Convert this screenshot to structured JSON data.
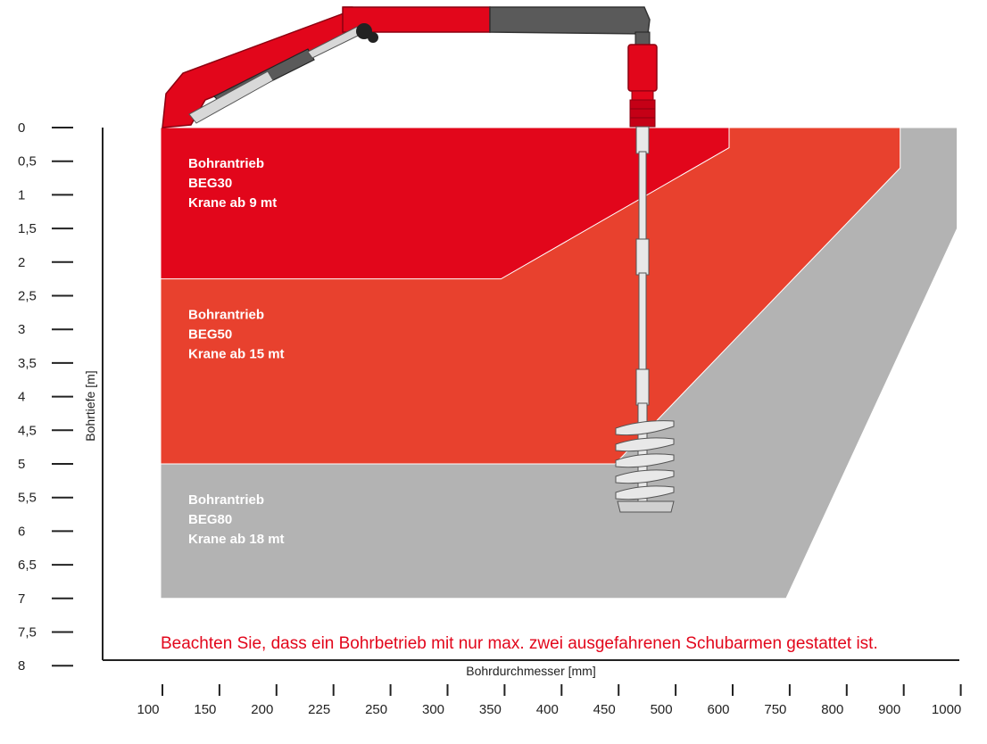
{
  "chart_data": {
    "type": "area",
    "title": "",
    "xlabel": "Bohrdurchmesser [mm]",
    "ylabel": "Bohrtiefe [m]",
    "x_tick_labels": [
      "100",
      "150",
      "200",
      "225",
      "250",
      "300",
      "350",
      "400",
      "450",
      "500",
      "600",
      "750",
      "800",
      "900",
      "1000"
    ],
    "y_ticks": [
      0,
      0.5,
      1,
      1.5,
      2,
      2.5,
      3,
      3.5,
      4,
      4.5,
      5,
      5.5,
      6,
      6.5,
      7,
      7.5,
      8
    ],
    "y_tick_labels": [
      "0",
      "0,5",
      "1",
      "1,5",
      "2",
      "2,5",
      "3",
      "3,5",
      "4",
      "4,5",
      "5",
      "5,5",
      "6",
      "6,5",
      "7",
      "7,5",
      "8"
    ],
    "ylim": [
      0,
      8
    ],
    "y_inverted": true,
    "zones": [
      {
        "label_lines": [
          "Bohrantrieb",
          "BEG80",
          "Krane ab 18 mt"
        ],
        "color": "#b3b3b3",
        "boundary": [
          {
            "diameter": "1000",
            "depth": 0
          },
          {
            "diameter": "1000",
            "depth": 1.5
          },
          {
            "diameter": "750",
            "depth": 7
          },
          {
            "diameter": "100",
            "depth": 7
          }
        ]
      },
      {
        "label_lines": [
          "Bohrantrieb",
          "BEG50",
          "Krane ab 15 mt"
        ],
        "color": "#e8412e",
        "boundary": [
          {
            "diameter": "900",
            "depth": 0
          },
          {
            "diameter": "900",
            "depth": 0.6
          },
          {
            "diameter": "450",
            "depth": 5
          },
          {
            "diameter": "100",
            "depth": 5
          }
        ]
      },
      {
        "label_lines": [
          "Bohrantrieb",
          "BEG30",
          "Krane ab 9 mt"
        ],
        "color": "#e2061b",
        "boundary": [
          {
            "diameter": "600",
            "depth": 0
          },
          {
            "diameter": "600",
            "depth": 0.3
          },
          {
            "diameter": "350",
            "depth": 2.25
          },
          {
            "diameter": "100",
            "depth": 2.25
          }
        ]
      }
    ],
    "note": "Beachten Sie, dass ein Bohrbetrieb mit nur max. zwei ausgefahrenen Schubarmen gestattet ist.",
    "note_color": "#e2061b"
  },
  "illustration": {
    "crane_red": "#e2061b",
    "crane_dark": "#5a5a5a",
    "auger_color": "#e8e8e8"
  }
}
